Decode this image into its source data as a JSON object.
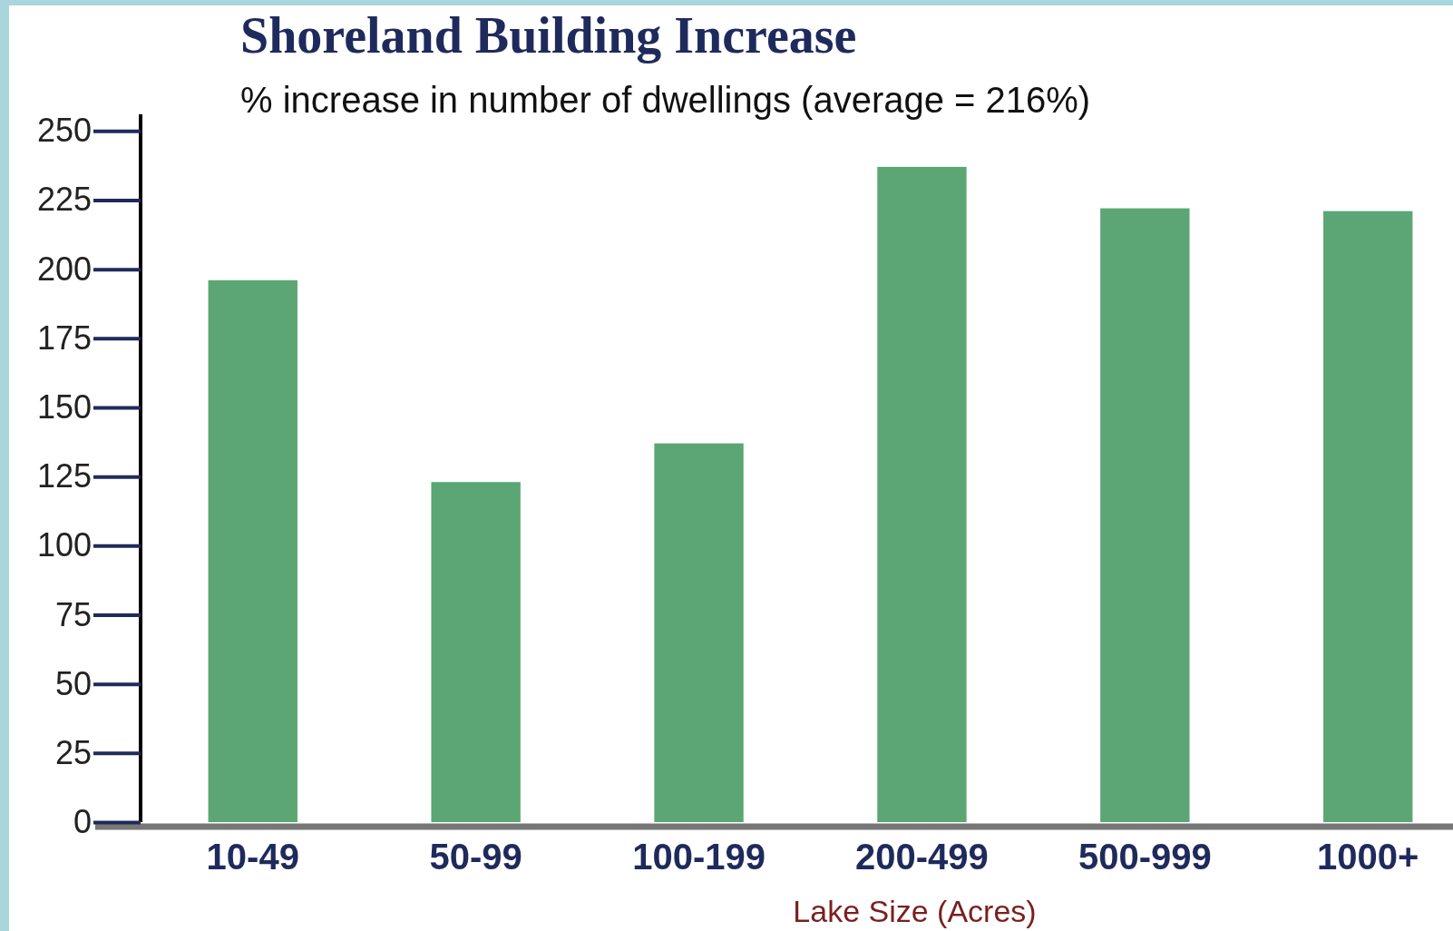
{
  "chart_data": {
    "type": "bar",
    "title": "Shoreland Building Increase",
    "subtitle": "% increase in number of dwellings (average = 216%)",
    "xlabel": "Lake Size (Acres)",
    "categories": [
      "10-49",
      "50-99",
      "100-199",
      "200-499",
      "500-999",
      "1000+"
    ],
    "values": [
      196,
      123,
      137,
      237,
      222,
      221
    ],
    "color": "#5ba674",
    "ylim": [
      0,
      256
    ],
    "yticks": [
      0,
      25,
      50,
      75,
      100,
      125,
      150,
      175,
      200,
      225,
      250
    ],
    "grid": false
  }
}
